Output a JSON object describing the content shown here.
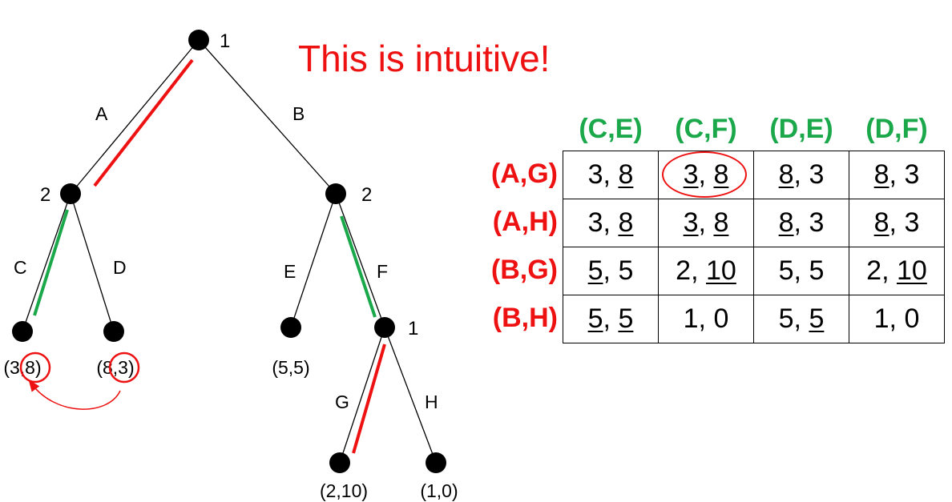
{
  "title": "This is intuitive!",
  "tree": {
    "nodes": {
      "root": "1",
      "left": "2",
      "right": "2",
      "f_node": "1"
    },
    "edges": {
      "A": "A",
      "B": "B",
      "C": "C",
      "D": "D",
      "E": "E",
      "F": "F",
      "G": "G",
      "H": "H"
    },
    "payoffs": {
      "ll": "(3,8)",
      "lr": "(8,3)",
      "re": "(5,5)",
      "g": "(2,10)",
      "h": "(1,0)"
    }
  },
  "matrix": {
    "columns": [
      "(C,E)",
      "(C,F)",
      "(D,E)",
      "(D,F)"
    ],
    "rows": [
      {
        "label": "(A,G)",
        "cells": [
          [
            "3",
            "8"
          ],
          [
            "3",
            "8"
          ],
          [
            "8",
            "3"
          ],
          [
            "8",
            "3"
          ]
        ]
      },
      {
        "label": "(A,H)",
        "cells": [
          [
            "3",
            "8"
          ],
          [
            "3",
            "8"
          ],
          [
            "8",
            "3"
          ],
          [
            "8",
            "3"
          ]
        ]
      },
      {
        "label": "(B,G)",
        "cells": [
          [
            "5",
            "5"
          ],
          [
            "2",
            "10"
          ],
          [
            "5",
            "5"
          ],
          [
            "2",
            "10"
          ]
        ]
      },
      {
        "label": "(B,H)",
        "cells": [
          [
            "5",
            "5"
          ],
          [
            "1",
            "0"
          ],
          [
            "5",
            "5"
          ],
          [
            "1",
            "0"
          ]
        ]
      }
    ],
    "underlines": [
      [
        [
          false,
          true
        ],
        [
          true,
          true
        ],
        [
          true,
          false
        ],
        [
          true,
          false
        ]
      ],
      [
        [
          false,
          true
        ],
        [
          true,
          true
        ],
        [
          true,
          false
        ],
        [
          true,
          false
        ]
      ],
      [
        [
          true,
          false
        ],
        [
          false,
          true
        ],
        [
          false,
          false
        ],
        [
          false,
          true
        ]
      ],
      [
        [
          true,
          true
        ],
        [
          false,
          false
        ],
        [
          false,
          true
        ],
        [
          false,
          false
        ]
      ]
    ],
    "circled_cell": {
      "row": 0,
      "col": 1
    }
  },
  "colors": {
    "highlight_red": "#ee1111",
    "highlight_green": "#1aa84a"
  }
}
